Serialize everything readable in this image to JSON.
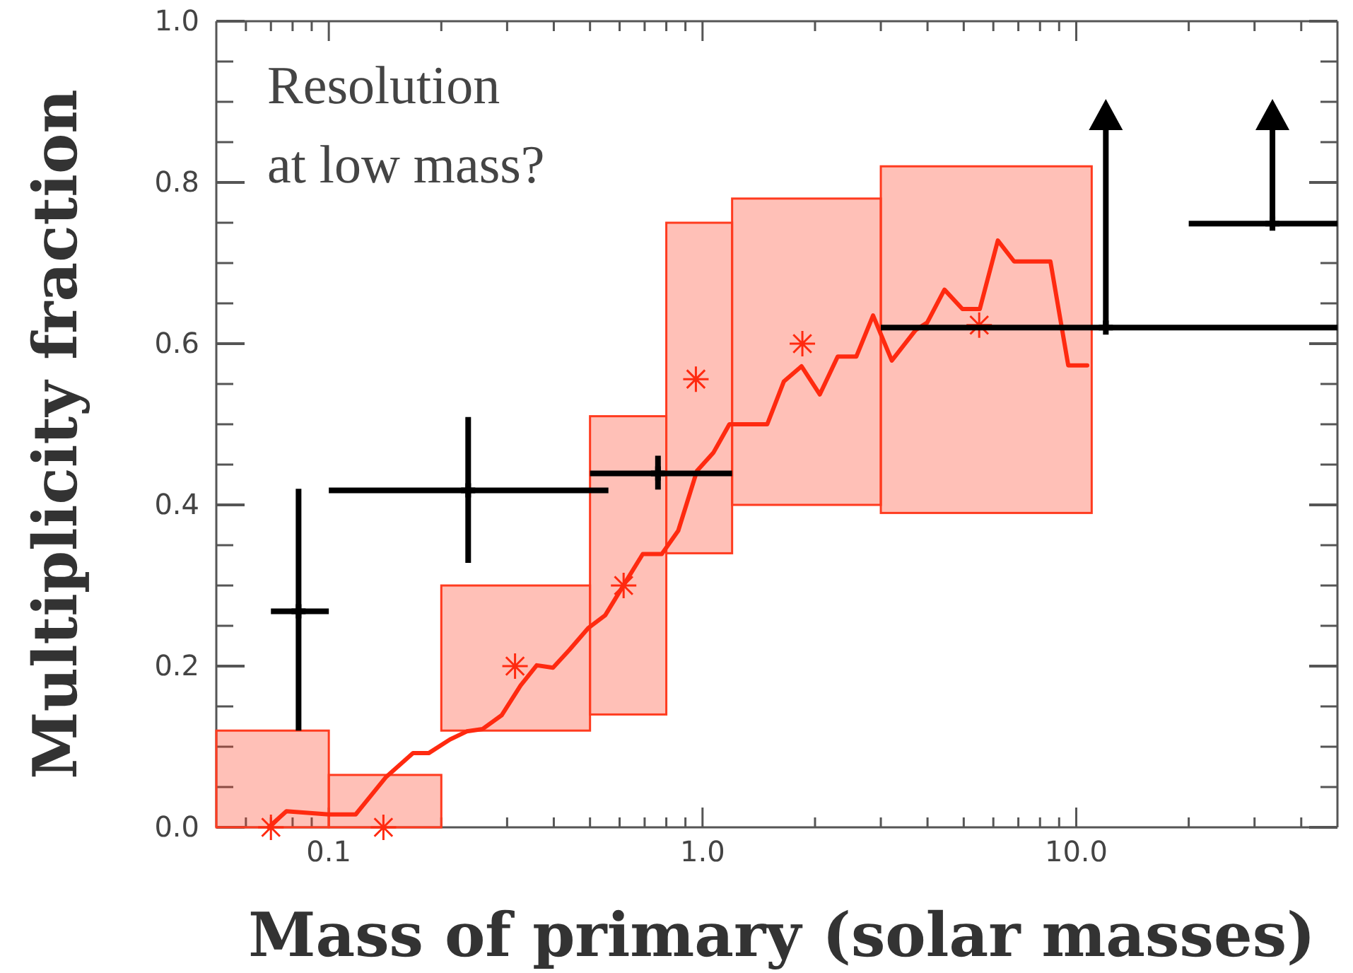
{
  "chart_data": {
    "type": "scatter",
    "xlabel": "Mass of primary (solar masses)",
    "ylabel": "Multiplicity fraction",
    "log": "x",
    "xlim": [
      0.05,
      50
    ],
    "ylim": [
      0,
      1
    ],
    "xticks": [
      {
        "value": 0.06,
        "label": null
      },
      {
        "value": 0.07,
        "label": null
      },
      {
        "value": 0.08,
        "label": null
      },
      {
        "value": 0.09,
        "label": null
      },
      {
        "value": 0.1,
        "label": "0.1"
      },
      {
        "value": 0.2,
        "label": null
      },
      {
        "value": 0.3,
        "label": null
      },
      {
        "value": 0.4,
        "label": null
      },
      {
        "value": 0.5,
        "label": null
      },
      {
        "value": 0.6,
        "label": null
      },
      {
        "value": 0.7,
        "label": null
      },
      {
        "value": 0.8,
        "label": null
      },
      {
        "value": 0.9,
        "label": null
      },
      {
        "value": 1,
        "label": "1.0"
      },
      {
        "value": 2,
        "label": null
      },
      {
        "value": 3,
        "label": null
      },
      {
        "value": 4,
        "label": null
      },
      {
        "value": 5,
        "label": null
      },
      {
        "value": 6,
        "label": null
      },
      {
        "value": 7,
        "label": null
      },
      {
        "value": 8,
        "label": null
      },
      {
        "value": 9,
        "label": null
      },
      {
        "value": 10,
        "label": "10.0"
      },
      {
        "value": 20,
        "label": null
      },
      {
        "value": 30,
        "label": null
      },
      {
        "value": 40,
        "label": null
      }
    ],
    "yticks": [
      {
        "value": 0,
        "label": "0.0"
      },
      {
        "value": 0.05,
        "label": null
      },
      {
        "value": 0.1,
        "label": null
      },
      {
        "value": 0.15,
        "label": null
      },
      {
        "value": 0.2,
        "label": "0.2"
      },
      {
        "value": 0.25,
        "label": null
      },
      {
        "value": 0.3,
        "label": null
      },
      {
        "value": 0.35,
        "label": null
      },
      {
        "value": 0.4,
        "label": "0.4"
      },
      {
        "value": 0.45,
        "label": null
      },
      {
        "value": 0.5,
        "label": null
      },
      {
        "value": 0.55,
        "label": null
      },
      {
        "value": 0.6,
        "label": "0.6"
      },
      {
        "value": 0.65,
        "label": null
      },
      {
        "value": 0.7,
        "label": null
      },
      {
        "value": 0.75,
        "label": null
      },
      {
        "value": 0.8,
        "label": "0.8"
      },
      {
        "value": 0.85,
        "label": null
      },
      {
        "value": 0.9,
        "label": null
      },
      {
        "value": 0.95,
        "label": null
      },
      {
        "value": 1,
        "label": "1.0"
      }
    ],
    "grid": false,
    "annotations": [
      "Resolution at low mass?"
    ],
    "series": [
      {
        "type": "histogram",
        "color": "#ff3b1f",
        "bins": [
          0.05,
          0.1,
          0.2,
          0.5,
          0.8,
          1.2,
          3,
          11
        ],
        "values": [
          0.12,
          0.065,
          0.18,
          0.37,
          0.41,
          0.38,
          0.43
        ],
        "base": [
          0,
          0,
          0.12,
          0.14,
          0.34,
          0.4,
          0.39
        ]
      },
      {
        "type": "line",
        "color": "#ff2a10",
        "line_style": "solid",
        "marker": "none",
        "x": [
          0.069,
          0.077,
          0.1,
          0.118,
          0.142,
          0.168,
          0.185,
          0.211,
          0.234,
          0.258,
          0.29,
          0.326,
          0.36,
          0.398,
          0.44,
          0.494,
          0.549,
          0.616,
          0.692,
          0.778,
          0.861,
          0.966,
          1.07,
          1.18,
          1.49,
          1.65,
          1.84,
          2.06,
          2.3,
          2.58,
          2.86,
          3.21,
          3.72,
          3.99,
          4.44,
          4.96,
          5.52,
          6.17,
          6.82,
          8.53,
          9.52,
          10.7
        ],
        "values": [
          0,
          0.02,
          0.016,
          0.016,
          0.062,
          0.092,
          0.092,
          0.109,
          0.119,
          0.122,
          0.139,
          0.176,
          0.201,
          0.198,
          0.22,
          0.247,
          0.263,
          0.301,
          0.339,
          0.339,
          0.368,
          0.442,
          0.465,
          0.5,
          0.5,
          0.553,
          0.572,
          0.537,
          0.584,
          0.584,
          0.635,
          0.579,
          0.617,
          0.626,
          0.667,
          0.643,
          0.643,
          0.728,
          0.702,
          0.702,
          0.573,
          0.573
        ]
      },
      {
        "color": "#ff2a10",
        "marker": "cross",
        "x": [
          0.07,
          0.14,
          0.315,
          0.615,
          0.96,
          1.85,
          5.5
        ],
        "values": [
          0,
          0,
          0.2,
          0.3,
          0.556,
          0.6,
          0.623
        ]
      },
      {
        "color": "#000000",
        "marker": "cross",
        "x": [
          0.083,
          0.236,
          0.76
        ],
        "values": [
          0.268,
          0.418,
          0.439
        ],
        "errors": [
          [
            0.12,
            0.42
          ],
          [
            0.328,
            0.509
          ],
          [
            0.419,
            0.461
          ]
        ],
        "xerrors": [
          [
            0.07,
            0.1
          ],
          [
            0.1,
            0.56
          ],
          [
            0.5,
            1.2
          ]
        ]
      },
      {
        "color": "#000000",
        "marker": "cross",
        "x": [
          12,
          33.5
        ],
        "values": [
          0.62,
          0.749
        ],
        "errors": [
          [
            0.62,
            0.865
          ],
          [
            0.749,
            0.865
          ]
        ],
        "xerrors": [
          [
            3,
            50
          ],
          [
            20,
            50
          ]
        ]
      }
    ]
  }
}
